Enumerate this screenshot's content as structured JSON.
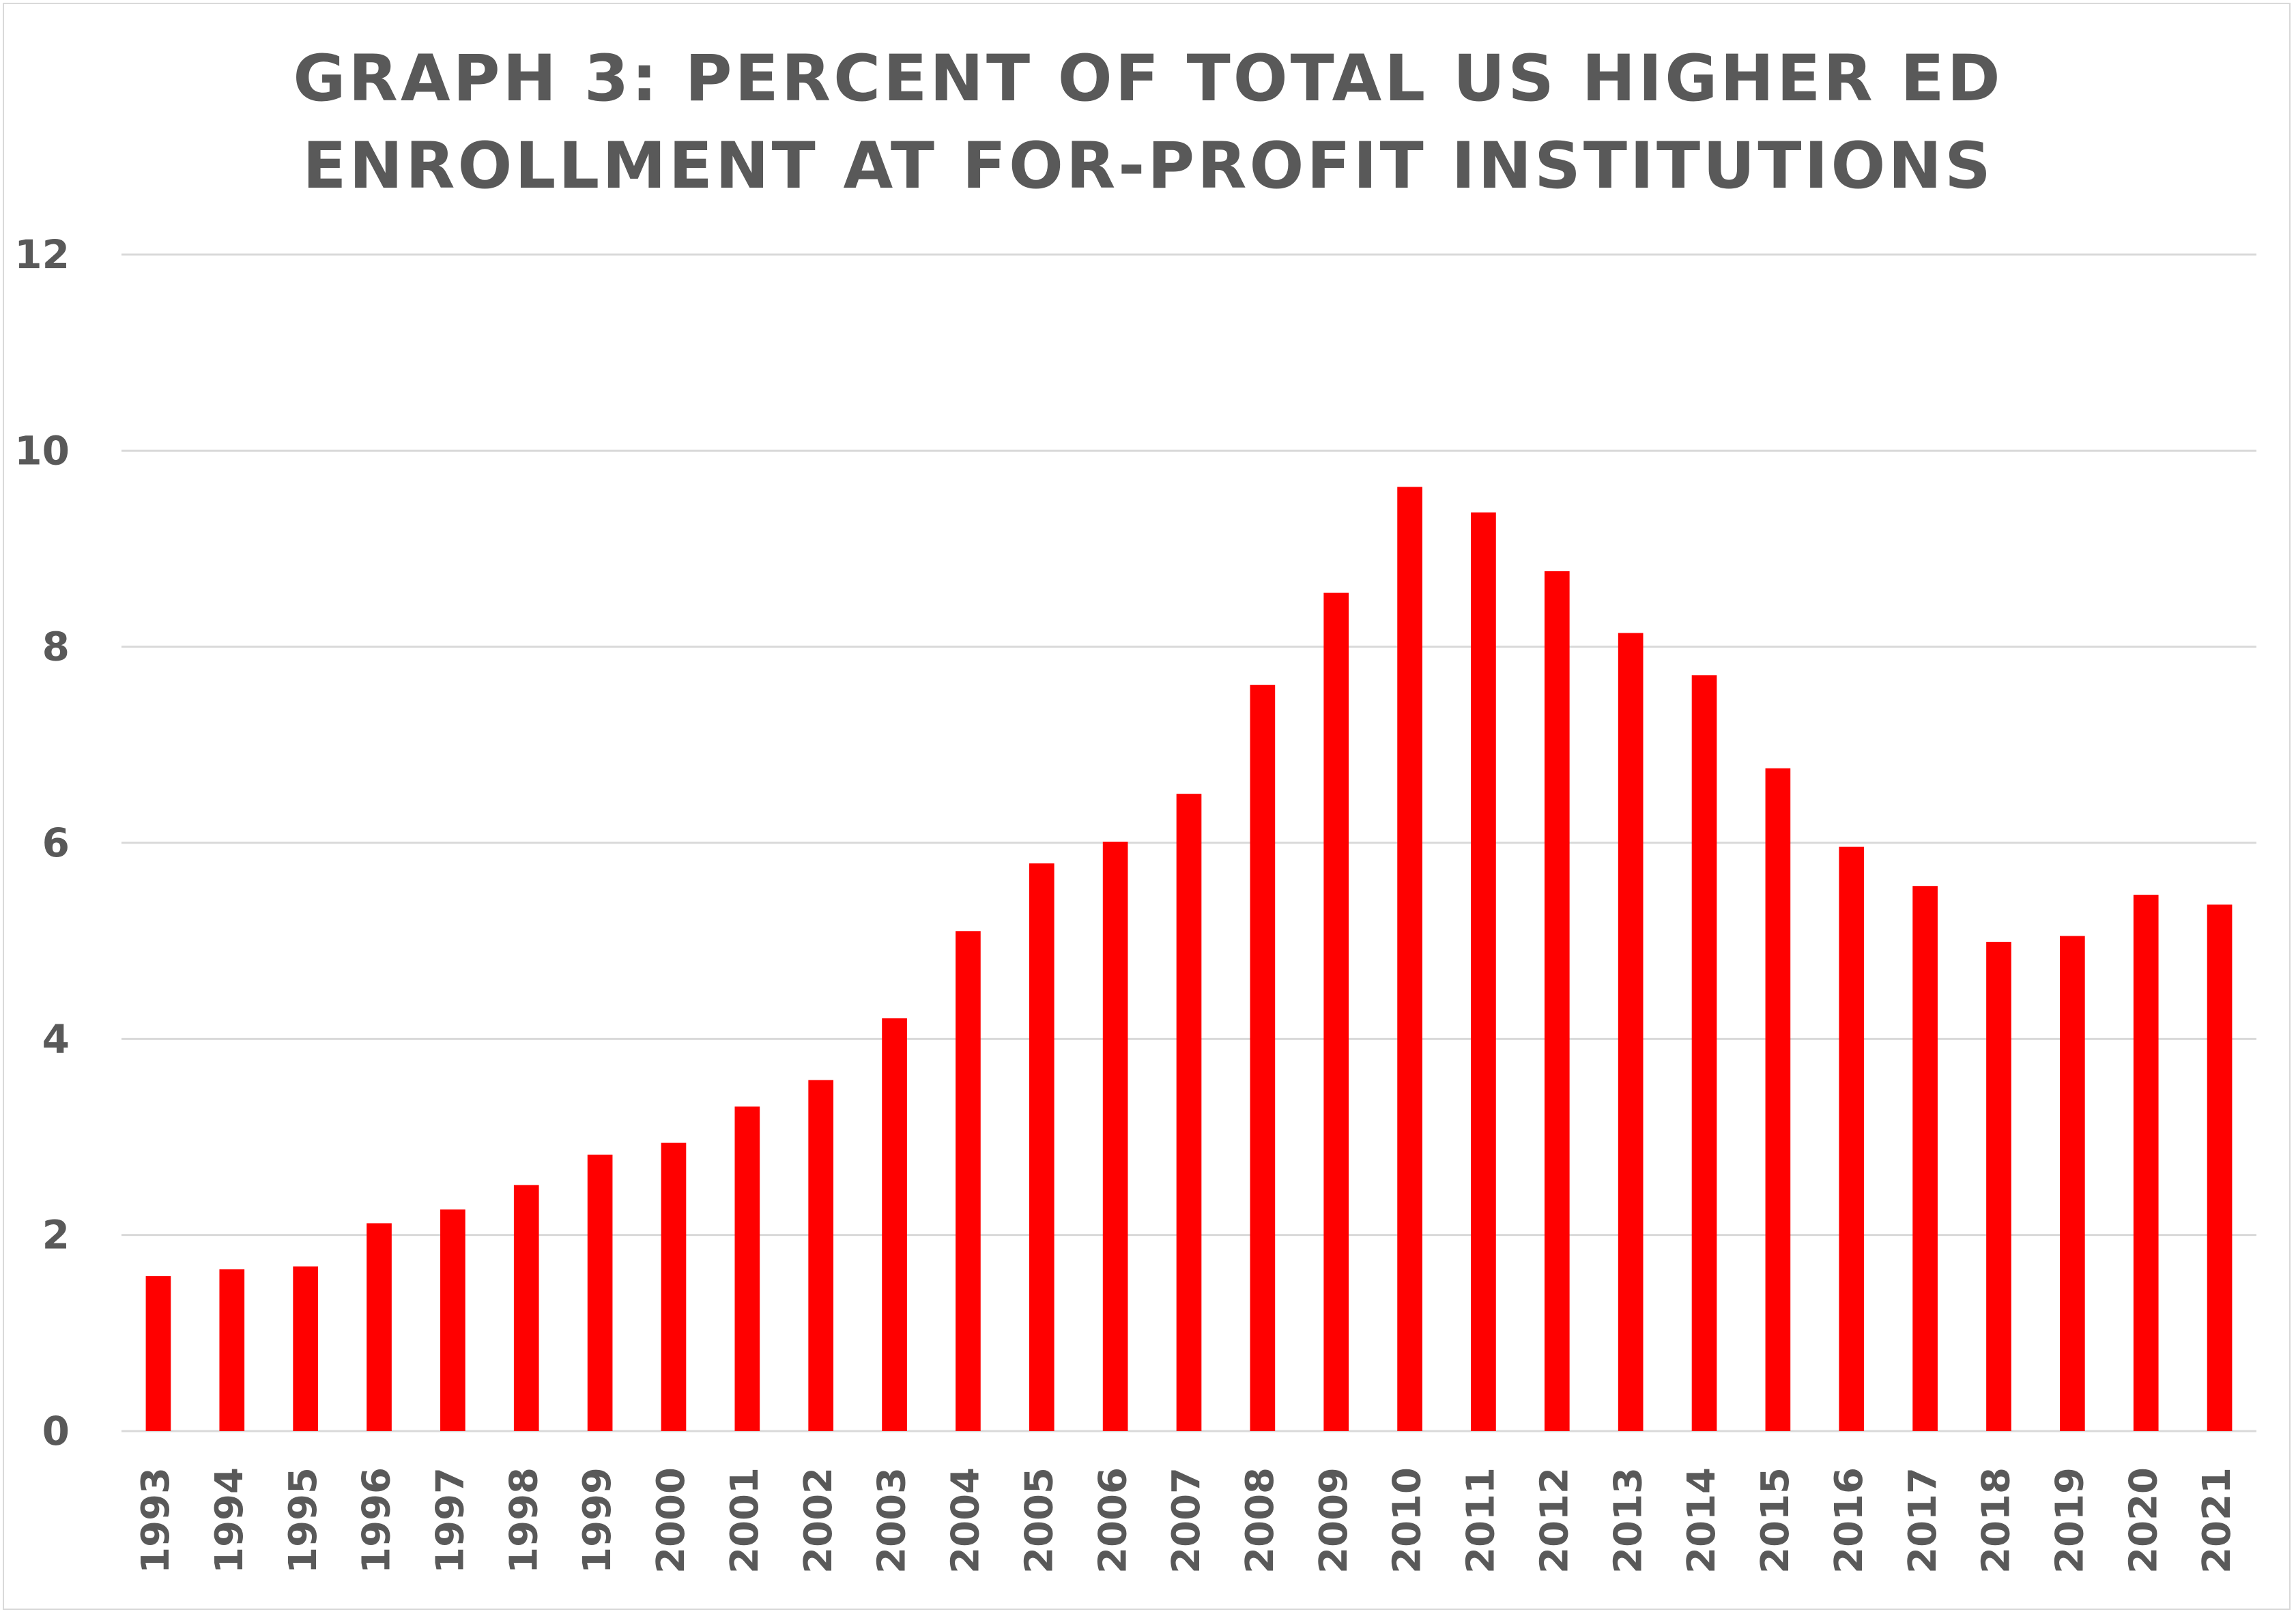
{
  "chart_data": {
    "type": "bar",
    "title": "GRAPH 3: PERCENT OF TOTAL US HIGHER ED ENROLLMENT AT FOR-PROFIT INSTITUTIONS",
    "title_lines": [
      "GRAPH 3: PERCENT OF TOTAL US HIGHER ED",
      "ENROLLMENT AT FOR-PROFIT INSTITUTIONS"
    ],
    "xlabel": "",
    "ylabel": "",
    "ylim": [
      0,
      12
    ],
    "yticks": [
      0,
      2,
      4,
      6,
      8,
      10,
      12
    ],
    "grid": true,
    "legend": "none",
    "bar_color": "#ff0000",
    "grid_color": "#d9d9d9",
    "text_color": "#595959",
    "categories": [
      "1993",
      "1994",
      "1995",
      "1996",
      "1997",
      "1998",
      "1999",
      "2000",
      "2001",
      "2002",
      "2003",
      "2004",
      "2005",
      "2006",
      "2007",
      "2008",
      "2009",
      "2010",
      "2011",
      "2012",
      "2013",
      "2014",
      "2015",
      "2016",
      "2017",
      "2018",
      "2019",
      "2020",
      "2021"
    ],
    "values": [
      1.58,
      1.65,
      1.68,
      2.12,
      2.26,
      2.51,
      2.82,
      2.94,
      3.31,
      3.58,
      4.21,
      5.1,
      5.79,
      6.01,
      6.5,
      7.61,
      8.55,
      9.63,
      9.37,
      8.77,
      8.14,
      7.71,
      6.76,
      5.96,
      5.56,
      4.99,
      5.05,
      5.47,
      5.37
    ]
  }
}
